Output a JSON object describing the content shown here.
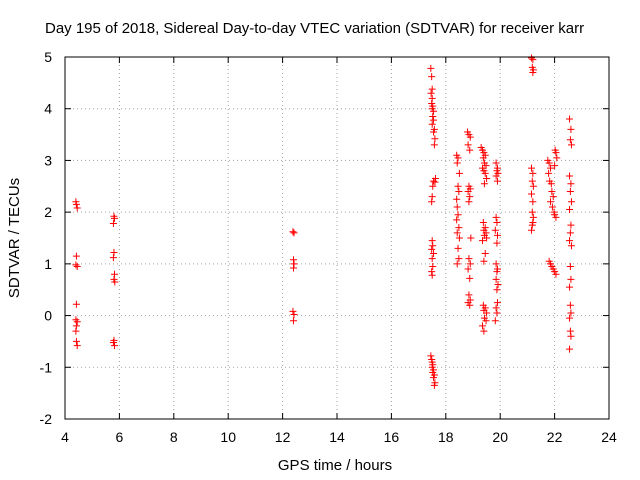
{
  "chart_data": {
    "type": "scatter",
    "title": "Day 195 of 2018, Sidereal Day-to-day VTEC variation (SDTVAR) for receiver karr",
    "xlabel": "GPS time / hours",
    "ylabel": "SDTVAR / TECUs",
    "xlim": [
      4,
      24
    ],
    "ylim": [
      -2,
      5
    ],
    "xticks": [
      "4",
      "6",
      "8",
      "10",
      "12",
      "14",
      "16",
      "18",
      "20",
      "22",
      "24"
    ],
    "yticks": [
      "-2",
      "-1",
      "0",
      "1",
      "2",
      "3",
      "4",
      "5"
    ],
    "grid": true,
    "marker": "+",
    "series": [
      {
        "name": "SDTVAR",
        "color": "#ff0000",
        "points": [
          [
            4.4,
            2.2
          ],
          [
            4.42,
            2.15
          ],
          [
            4.45,
            2.08
          ],
          [
            4.42,
            1.15
          ],
          [
            4.4,
            0.98
          ],
          [
            4.45,
            0.95
          ],
          [
            4.42,
            0.22
          ],
          [
            4.4,
            -0.08
          ],
          [
            4.45,
            -0.12
          ],
          [
            4.42,
            -0.2
          ],
          [
            4.4,
            -0.3
          ],
          [
            4.42,
            -0.5
          ],
          [
            4.45,
            -0.58
          ],
          [
            5.8,
            1.92
          ],
          [
            5.82,
            1.88
          ],
          [
            5.78,
            1.78
          ],
          [
            5.8,
            1.22
          ],
          [
            5.78,
            1.12
          ],
          [
            5.82,
            0.8
          ],
          [
            5.8,
            0.7
          ],
          [
            5.83,
            0.65
          ],
          [
            5.8,
            -0.48
          ],
          [
            5.78,
            -0.52
          ],
          [
            5.82,
            -0.58
          ],
          [
            12.38,
            1.62
          ],
          [
            12.42,
            1.6
          ],
          [
            12.4,
            1.08
          ],
          [
            12.42,
            1.0
          ],
          [
            12.4,
            0.92
          ],
          [
            12.38,
            0.08
          ],
          [
            12.42,
            0.02
          ],
          [
            12.4,
            -0.1
          ],
          [
            17.45,
            4.78
          ],
          [
            17.48,
            4.62
          ],
          [
            17.5,
            4.38
          ],
          [
            17.46,
            4.3
          ],
          [
            17.5,
            4.2
          ],
          [
            17.48,
            4.1
          ],
          [
            17.52,
            4.05
          ],
          [
            17.5,
            4.0
          ],
          [
            17.55,
            3.95
          ],
          [
            17.52,
            3.85
          ],
          [
            17.55,
            3.78
          ],
          [
            17.5,
            3.7
          ],
          [
            17.58,
            3.6
          ],
          [
            17.55,
            3.55
          ],
          [
            17.6,
            3.42
          ],
          [
            17.58,
            3.3
          ],
          [
            17.62,
            2.65
          ],
          [
            17.55,
            2.6
          ],
          [
            17.6,
            2.58
          ],
          [
            17.52,
            2.5
          ],
          [
            17.5,
            2.3
          ],
          [
            17.48,
            2.2
          ],
          [
            17.5,
            1.45
          ],
          [
            17.52,
            1.35
          ],
          [
            17.48,
            1.28
          ],
          [
            17.55,
            1.2
          ],
          [
            17.5,
            1.1
          ],
          [
            17.52,
            0.95
          ],
          [
            17.48,
            0.85
          ],
          [
            17.5,
            0.78
          ],
          [
            17.45,
            -0.78
          ],
          [
            17.48,
            -0.85
          ],
          [
            17.5,
            -0.9
          ],
          [
            17.52,
            -0.95
          ],
          [
            17.5,
            -1.0
          ],
          [
            17.55,
            -1.05
          ],
          [
            17.52,
            -1.1
          ],
          [
            17.58,
            -1.15
          ],
          [
            17.55,
            -1.2
          ],
          [
            17.6,
            -1.3
          ],
          [
            17.58,
            -1.35
          ],
          [
            18.4,
            3.1
          ],
          [
            18.45,
            3.05
          ],
          [
            18.42,
            2.95
          ],
          [
            18.5,
            2.75
          ],
          [
            18.45,
            2.5
          ],
          [
            18.48,
            2.4
          ],
          [
            18.4,
            2.25
          ],
          [
            18.42,
            2.1
          ],
          [
            18.45,
            1.95
          ],
          [
            18.4,
            1.85
          ],
          [
            18.48,
            1.7
          ],
          [
            18.42,
            1.6
          ],
          [
            18.5,
            1.5
          ],
          [
            18.45,
            1.3
          ],
          [
            18.48,
            1.1
          ],
          [
            18.42,
            1.0
          ],
          [
            18.8,
            3.55
          ],
          [
            18.85,
            3.5
          ],
          [
            18.9,
            3.45
          ],
          [
            18.82,
            3.3
          ],
          [
            18.88,
            3.2
          ],
          [
            18.85,
            2.5
          ],
          [
            18.9,
            2.45
          ],
          [
            18.82,
            2.4
          ],
          [
            18.88,
            2.3
          ],
          [
            18.85,
            2.2
          ],
          [
            18.92,
            1.5
          ],
          [
            18.85,
            1.1
          ],
          [
            18.9,
            1.0
          ],
          [
            18.82,
            0.9
          ],
          [
            18.88,
            0.72
          ],
          [
            18.85,
            0.4
          ],
          [
            18.9,
            0.3
          ],
          [
            18.82,
            0.25
          ],
          [
            18.88,
            0.2
          ],
          [
            19.3,
            3.25
          ],
          [
            19.35,
            3.2
          ],
          [
            19.4,
            3.15
          ],
          [
            19.45,
            3.1
          ],
          [
            19.38,
            3.05
          ],
          [
            19.42,
            2.95
          ],
          [
            19.48,
            2.9
          ],
          [
            19.35,
            2.85
          ],
          [
            19.4,
            2.8
          ],
          [
            19.45,
            2.75
          ],
          [
            19.5,
            2.65
          ],
          [
            19.42,
            2.55
          ],
          [
            19.38,
            1.8
          ],
          [
            19.45,
            1.7
          ],
          [
            19.4,
            1.65
          ],
          [
            19.48,
            1.6
          ],
          [
            19.42,
            1.55
          ],
          [
            19.5,
            1.5
          ],
          [
            19.35,
            1.45
          ],
          [
            19.45,
            1.2
          ],
          [
            19.4,
            1.05
          ],
          [
            19.38,
            0.2
          ],
          [
            19.45,
            0.15
          ],
          [
            19.4,
            0.1
          ],
          [
            19.5,
            0.05
          ],
          [
            19.42,
            -0.05
          ],
          [
            19.48,
            -0.1
          ],
          [
            19.35,
            -0.2
          ],
          [
            19.4,
            -0.3
          ],
          [
            19.85,
            2.95
          ],
          [
            19.9,
            2.85
          ],
          [
            19.88,
            2.8
          ],
          [
            19.92,
            2.75
          ],
          [
            19.85,
            2.7
          ],
          [
            19.9,
            2.6
          ],
          [
            19.85,
            1.9
          ],
          [
            19.88,
            1.8
          ],
          [
            19.82,
            1.65
          ],
          [
            19.9,
            1.55
          ],
          [
            19.88,
            1.4
          ],
          [
            19.85,
            1.0
          ],
          [
            19.9,
            0.9
          ],
          [
            19.88,
            0.85
          ],
          [
            19.85,
            0.7
          ],
          [
            19.92,
            0.6
          ],
          [
            19.88,
            0.5
          ],
          [
            19.9,
            0.25
          ],
          [
            19.85,
            0.15
          ],
          [
            19.88,
            0.05
          ],
          [
            19.82,
            -0.1
          ],
          [
            21.15,
            4.98
          ],
          [
            21.2,
            4.95
          ],
          [
            21.18,
            4.8
          ],
          [
            21.22,
            4.75
          ],
          [
            21.2,
            4.7
          ],
          [
            21.15,
            2.85
          ],
          [
            21.2,
            2.75
          ],
          [
            21.18,
            2.6
          ],
          [
            21.22,
            2.5
          ],
          [
            21.15,
            2.35
          ],
          [
            21.2,
            2.2
          ],
          [
            21.18,
            2.0
          ],
          [
            21.22,
            1.9
          ],
          [
            21.2,
            1.8
          ],
          [
            21.18,
            1.75
          ],
          [
            21.15,
            1.65
          ],
          [
            21.75,
            3.0
          ],
          [
            21.8,
            2.95
          ],
          [
            21.85,
            2.85
          ],
          [
            21.78,
            2.75
          ],
          [
            21.82,
            2.6
          ],
          [
            21.88,
            2.55
          ],
          [
            21.9,
            2.4
          ],
          [
            21.95,
            2.3
          ],
          [
            21.85,
            2.2
          ],
          [
            21.92,
            2.1
          ],
          [
            21.98,
            2.0
          ],
          [
            22.0,
            1.95
          ],
          [
            22.05,
            1.9
          ],
          [
            21.8,
            1.05
          ],
          [
            21.85,
            1.0
          ],
          [
            21.9,
            0.95
          ],
          [
            21.95,
            0.9
          ],
          [
            22.0,
            0.85
          ],
          [
            22.05,
            0.8
          ],
          [
            22.02,
            3.2
          ],
          [
            22.05,
            3.15
          ],
          [
            22.08,
            3.05
          ],
          [
            22.0,
            2.9
          ],
          [
            22.55,
            3.8
          ],
          [
            22.6,
            3.6
          ],
          [
            22.58,
            3.4
          ],
          [
            22.62,
            3.3
          ],
          [
            22.55,
            2.7
          ],
          [
            22.6,
            2.55
          ],
          [
            22.58,
            2.4
          ],
          [
            22.62,
            2.2
          ],
          [
            22.55,
            2.05
          ],
          [
            22.6,
            1.75
          ],
          [
            22.58,
            1.6
          ],
          [
            22.55,
            1.45
          ],
          [
            22.62,
            1.35
          ],
          [
            22.58,
            0.95
          ],
          [
            22.6,
            0.7
          ],
          [
            22.55,
            0.55
          ],
          [
            22.58,
            0.2
          ],
          [
            22.6,
            0.05
          ],
          [
            22.55,
            -0.05
          ],
          [
            22.58,
            -0.3
          ],
          [
            22.6,
            -0.4
          ],
          [
            22.55,
            -0.65
          ]
        ]
      }
    ]
  }
}
